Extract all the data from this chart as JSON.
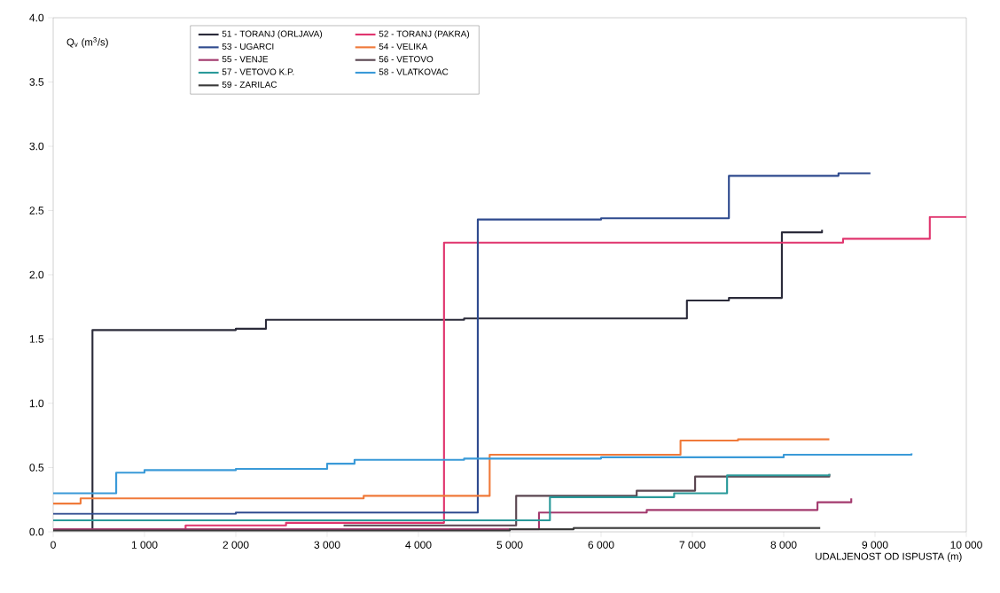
{
  "chart_data": {
    "type": "step",
    "xlabel": "UDALJENOST OD ISPUSTA (m)",
    "ylabel": "Q$_{v}$ (m$^{3}$/s)",
    "xlim": [
      0,
      10000
    ],
    "ylim": [
      0,
      4.0
    ],
    "xticks": [
      0,
      {
        "value": 1000,
        "label": "1 000"
      },
      {
        "value": 2000,
        "label": "2 000"
      },
      {
        "value": 3000,
        "label": "3 000"
      },
      {
        "value": 4000,
        "label": "4 000"
      },
      {
        "value": 5000,
        "label": "5 000"
      },
      {
        "value": 6000,
        "label": "6 000"
      },
      {
        "value": 7000,
        "label": "7 000"
      },
      {
        "value": 8000,
        "label": "8 000"
      },
      {
        "value": 9000,
        "label": "9 000"
      },
      {
        "value": 10000,
        "label": "10 000"
      }
    ],
    "yticks": [
      {
        "value": 0,
        "label": "0.0"
      },
      0.5,
      {
        "value": 1,
        "label": "1.0"
      },
      1.5,
      {
        "value": 2,
        "label": "2.0"
      },
      2.5,
      {
        "value": 3,
        "label": "3.0"
      },
      3.5,
      {
        "value": 4,
        "label": "4.0"
      }
    ],
    "grid": false,
    "legend": "top left",
    "marker": "none",
    "line_style": "solid",
    "series": [
      {
        "name": "51 - TORANJ (ORLJAVA)",
        "color": "#2b2b3a",
        "x": [
          0,
          430,
          2000,
          2330,
          4500,
          6940,
          7400,
          7980,
          8420
        ],
        "values": [
          0.02,
          1.57,
          1.58,
          1.65,
          1.66,
          1.8,
          1.82,
          2.33,
          2.35
        ]
      },
      {
        "name": "52 - TORANJ (PAKRA)",
        "color": "#e0356e",
        "x": [
          0,
          1450,
          2550,
          4280,
          8650,
          9600,
          10000
        ],
        "values": [
          0.02,
          0.05,
          0.07,
          2.25,
          2.28,
          2.45,
          2.45
        ]
      },
      {
        "name": "53 - UGARCI",
        "color": "#2e4a8e",
        "x": [
          0,
          2000,
          4650,
          6000,
          7400,
          8600,
          8950
        ],
        "values": [
          0.14,
          0.15,
          2.43,
          2.44,
          2.77,
          2.79,
          2.79
        ]
      },
      {
        "name": "54 - VELIKA",
        "color": "#f07a3a",
        "x": [
          0,
          300,
          3400,
          4780,
          6870,
          7500,
          8500
        ],
        "values": [
          0.22,
          0.26,
          0.28,
          0.6,
          0.71,
          0.72,
          0.72
        ]
      },
      {
        "name": "55 - VENJE",
        "color": "#a33a6e",
        "x": [
          0,
          5320,
          6500,
          8370,
          8740
        ],
        "values": [
          0.02,
          0.15,
          0.17,
          0.23,
          0.26
        ]
      },
      {
        "name": "56 - VETOVO",
        "color": "#5a4650",
        "x": [
          3180,
          5070,
          6390,
          7030,
          8500
        ],
        "values": [
          0.05,
          0.28,
          0.32,
          0.43,
          0.45
        ]
      },
      {
        "name": "57 - VETOVO K.P.",
        "color": "#2a9a9a",
        "x": [
          0,
          5440,
          6800,
          7380,
          8500
        ],
        "values": [
          0.09,
          0.27,
          0.3,
          0.44,
          0.45
        ]
      },
      {
        "name": "58 - VLATKOVAC",
        "color": "#3a9ad8",
        "x": [
          0,
          690,
          1000,
          2000,
          3000,
          3300,
          4500,
          6000,
          8000,
          9400
        ],
        "values": [
          0.3,
          0.46,
          0.48,
          0.49,
          0.53,
          0.56,
          0.57,
          0.58,
          0.6,
          0.61
        ]
      },
      {
        "name": "59 - ZARILAC",
        "color": "#3a3a3a",
        "x": [
          0,
          5000,
          5700,
          8400
        ],
        "values": [
          0.01,
          0.02,
          0.03,
          0.03
        ]
      }
    ]
  }
}
